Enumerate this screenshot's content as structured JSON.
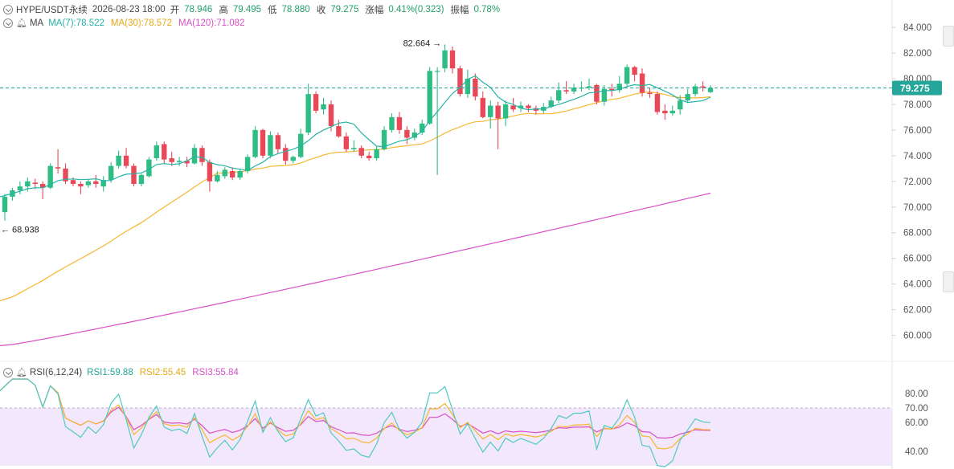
{
  "header": {
    "symbol": "HYPE/USDT永续",
    "datetime": "2026-08-23 18:00",
    "open_label": "开",
    "open": "78.946",
    "high_label": "高",
    "high": "79.495",
    "low_label": "低",
    "low": "78.880",
    "close_label": "收",
    "close": "79.275",
    "change_label": "涨幅",
    "change": "0.41%(0.323)",
    "amp_label": "振幅",
    "amp": "0.78%"
  },
  "ma_legend": {
    "title": "MA",
    "ma7": "MA(7):78.522",
    "ma30": "MA(30):78.572",
    "ma120": "MA(120):71.082"
  },
  "rsi_legend": {
    "title": "RSI(6,12,24)",
    "rsi1": "RSI1:59.88",
    "rsi2": "RSI2:55.45",
    "rsi3": "RSI3:55.84"
  },
  "colors": {
    "up": "#2ebd85",
    "down": "#e84858",
    "ma7": "#26b3a6",
    "ma30": "#f5b731",
    "ma120": "#d94fc6",
    "rsi1": "#4fc9c3",
    "rsi2": "#f5b731",
    "rsi3": "#d94fc6",
    "rsi_band": "#f3e8fb",
    "last_price": "#26a69a"
  },
  "chart_data": {
    "type": "candlestick",
    "price_axis": {
      "ticks": [
        "84.000",
        "82.000",
        "80.000",
        "78.000",
        "76.000",
        "74.000",
        "72.000",
        "70.000",
        "68.000",
        "66.000",
        "64.000",
        "62.000",
        "60.000"
      ],
      "range": [
        58.6,
        85.0
      ]
    },
    "last_price": "79.275",
    "max_marker": "82.664",
    "min_marker": "68.938",
    "candles": [
      [
        69.6,
        70.8,
        71.0,
        68.938
      ],
      [
        70.8,
        71.3,
        71.5,
        70.5
      ],
      [
        71.3,
        71.6,
        72.0,
        71.0
      ],
      [
        71.6,
        72.0,
        72.3,
        71.2
      ],
      [
        71.9,
        71.8,
        72.2,
        71.4
      ],
      [
        71.8,
        71.5,
        72.0,
        70.6
      ],
      [
        71.5,
        73.2,
        73.4,
        71.4
      ],
      [
        73.1,
        73.0,
        74.5,
        72.6
      ],
      [
        73.0,
        72.0,
        73.4,
        71.8
      ],
      [
        72.1,
        71.8,
        72.3,
        71.6
      ],
      [
        71.8,
        71.6,
        72.0,
        71.0
      ],
      [
        71.7,
        72.0,
        72.2,
        71.5
      ],
      [
        72.0,
        71.8,
        72.5,
        71.5
      ],
      [
        71.6,
        72.1,
        72.4,
        71.2
      ],
      [
        72.1,
        73.2,
        73.5,
        71.9
      ],
      [
        73.2,
        74.0,
        74.4,
        73.0
      ],
      [
        74.0,
        73.2,
        74.6,
        73.0
      ],
      [
        73.2,
        71.8,
        73.4,
        71.6
      ],
      [
        71.8,
        72.5,
        72.6,
        71.6
      ],
      [
        72.4,
        73.7,
        73.9,
        72.3
      ],
      [
        73.8,
        74.8,
        75.1,
        73.6
      ],
      [
        74.9,
        73.7,
        75.1,
        73.4
      ],
      [
        73.8,
        73.5,
        74.3,
        73.2
      ],
      [
        73.5,
        73.6,
        73.9,
        73.2
      ],
      [
        73.6,
        73.4,
        73.9,
        73.1
      ],
      [
        73.4,
        74.6,
        74.9,
        73.3
      ],
      [
        74.6,
        73.5,
        74.8,
        73.2
      ],
      [
        73.5,
        72.0,
        73.7,
        71.2
      ],
      [
        72.0,
        72.5,
        72.8,
        71.9
      ],
      [
        72.4,
        72.9,
        73.1,
        72.2
      ],
      [
        72.8,
        72.3,
        73.1,
        72.1
      ],
      [
        72.3,
        72.8,
        73.0,
        72.1
      ],
      [
        72.8,
        73.9,
        74.1,
        72.6
      ],
      [
        73.9,
        76.0,
        76.3,
        73.8
      ],
      [
        76.0,
        74.0,
        76.1,
        73.8
      ],
      [
        74.0,
        75.6,
        75.9,
        73.8
      ],
      [
        75.6,
        74.5,
        75.8,
        74.2
      ],
      [
        74.6,
        73.6,
        74.9,
        73.3
      ],
      [
        73.6,
        73.9,
        74.0,
        73.4
      ],
      [
        73.9,
        75.7,
        76.1,
        73.8
      ],
      [
        75.8,
        78.8,
        79.6,
        75.6
      ],
      [
        78.8,
        77.5,
        79.0,
        77.3
      ],
      [
        77.6,
        78.0,
        78.5,
        77.2
      ],
      [
        78.0,
        76.3,
        78.3,
        75.9
      ],
      [
        76.3,
        75.5,
        76.8,
        75.4
      ],
      [
        75.5,
        74.5,
        75.8,
        74.3
      ],
      [
        74.5,
        74.6,
        75.2,
        74.3
      ],
      [
        74.6,
        74.0,
        74.8,
        73.8
      ],
      [
        74.0,
        73.8,
        74.3,
        73.6
      ],
      [
        73.8,
        74.5,
        74.7,
        73.6
      ],
      [
        74.5,
        76.0,
        76.3,
        74.4
      ],
      [
        76.0,
        77.0,
        77.3,
        75.8
      ],
      [
        77.0,
        76.0,
        77.4,
        75.7
      ],
      [
        76.0,
        75.4,
        76.3,
        74.9
      ],
      [
        75.4,
        75.8,
        76.1,
        75.2
      ],
      [
        75.8,
        76.5,
        76.8,
        75.6
      ],
      [
        76.5,
        80.6,
        80.9,
        76.4
      ],
      [
        80.6,
        80.6,
        80.9,
        72.5
      ],
      [
        80.8,
        82.2,
        82.664,
        80.5
      ],
      [
        82.2,
        80.8,
        82.5,
        80.4
      ],
      [
        80.8,
        78.8,
        81.0,
        78.6
      ],
      [
        78.8,
        80.0,
        80.7,
        78.5
      ],
      [
        80.0,
        78.6,
        80.4,
        78.3
      ],
      [
        78.5,
        77.0,
        79.0,
        76.9
      ],
      [
        77.0,
        77.9,
        78.3,
        76.1
      ],
      [
        77.9,
        76.9,
        78.2,
        74.5
      ],
      [
        76.9,
        78.0,
        78.3,
        76.3
      ],
      [
        77.9,
        77.6,
        78.5,
        77.4
      ],
      [
        77.7,
        77.9,
        78.2,
        77.4
      ],
      [
        77.9,
        77.7,
        78.0,
        77.4
      ],
      [
        77.7,
        77.5,
        77.9,
        77.2
      ],
      [
        77.5,
        77.8,
        78.1,
        77.3
      ],
      [
        77.8,
        78.3,
        78.6,
        77.7
      ],
      [
        78.3,
        79.1,
        79.7,
        78.1
      ],
      [
        79.1,
        79.0,
        79.8,
        78.8
      ],
      [
        79.0,
        79.3,
        79.6,
        78.8
      ],
      [
        79.3,
        79.3,
        79.8,
        79.0
      ],
      [
        79.3,
        79.4,
        80.0,
        79.1
      ],
      [
        79.5,
        78.2,
        79.6,
        78.0
      ],
      [
        78.2,
        79.2,
        79.5,
        77.9
      ],
      [
        79.2,
        79.1,
        79.6,
        78.6
      ],
      [
        79.1,
        79.6,
        80.2,
        78.9
      ],
      [
        79.6,
        80.9,
        81.1,
        79.4
      ],
      [
        80.9,
        80.3,
        81.0,
        79.8
      ],
      [
        80.4,
        78.9,
        80.8,
        78.6
      ],
      [
        78.9,
        78.8,
        79.3,
        78.5
      ],
      [
        78.8,
        77.4,
        79.0,
        77.2
      ],
      [
        77.5,
        77.3,
        78.0,
        76.8
      ],
      [
        77.3,
        77.5,
        77.9,
        77.1
      ],
      [
        77.6,
        78.3,
        78.7,
        77.2
      ],
      [
        78.3,
        78.8,
        79.2,
        78.1
      ],
      [
        78.8,
        79.4,
        79.6,
        78.6
      ],
      [
        79.4,
        79.3,
        79.8,
        79.0
      ],
      [
        78.946,
        79.275,
        79.495,
        78.88
      ]
    ],
    "rsi_axis": {
      "ticks": [
        "80.00",
        "70.00",
        "60.00",
        "40.00"
      ],
      "band": [
        30,
        70
      ]
    },
    "ma120_range": [
      59.2,
      71.082
    ]
  }
}
